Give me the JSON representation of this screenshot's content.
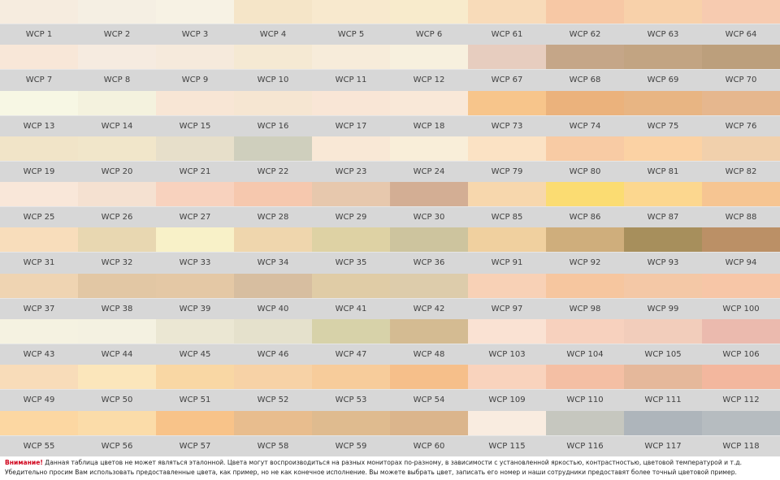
{
  "rows": [
    [
      {
        "code": "WCP 1",
        "color": "#f6ecdf"
      },
      {
        "code": "WCP 2",
        "color": "#f5efe3"
      },
      {
        "code": "WCP 3",
        "color": "#f7f2e4"
      },
      {
        "code": "WCP 4",
        "color": "#f5e5c8"
      },
      {
        "code": "WCP 5",
        "color": "#f8e9ce"
      },
      {
        "code": "WCP 6",
        "color": "#f8ebcc"
      },
      {
        "code": "WCP 61",
        "color": "#f8dbb9"
      },
      {
        "code": "WCP 62",
        "color": "#f7c8a5"
      },
      {
        "code": "WCP 63",
        "color": "#f8d1aa"
      },
      {
        "code": "WCP 64",
        "color": "#f7cbb0"
      }
    ],
    [
      {
        "code": "WCP 7",
        "color": "#f8e7d8"
      },
      {
        "code": "WCP 8",
        "color": "#f6ebe0"
      },
      {
        "code": "WCP 9",
        "color": "#f6eadc"
      },
      {
        "code": "WCP 10",
        "color": "#f5e9d3"
      },
      {
        "code": "WCP 11",
        "color": "#f7ecda"
      },
      {
        "code": "WCP 12",
        "color": "#f7f0de"
      },
      {
        "code": "WCP 67",
        "color": "#e7cdbf"
      },
      {
        "code": "WCP 68",
        "color": "#c5a688"
      },
      {
        "code": "WCP 69",
        "color": "#c2a482"
      },
      {
        "code": "WCP 70",
        "color": "#bc9f7c"
      }
    ],
    [
      {
        "code": "WCP 13",
        "color": "#f7f7e4"
      },
      {
        "code": "WCP 14",
        "color": "#f4f2de"
      },
      {
        "code": "WCP 15",
        "color": "#f8e6d5"
      },
      {
        "code": "WCP 16",
        "color": "#f6e6d2"
      },
      {
        "code": "WCP 17",
        "color": "#f9e6d6"
      },
      {
        "code": "WCP 18",
        "color": "#f9e8d8"
      },
      {
        "code": "WCP 73",
        "color": "#f7c58b"
      },
      {
        "code": "WCP 74",
        "color": "#ebb27c"
      },
      {
        "code": "WCP 75",
        "color": "#e8b583"
      },
      {
        "code": "WCP 76",
        "color": "#e6b78e"
      }
    ],
    [
      {
        "code": "WCP 19",
        "color": "#f1e4c8"
      },
      {
        "code": "WCP 20",
        "color": "#f1e6ca"
      },
      {
        "code": "WCP 21",
        "color": "#e7dfca"
      },
      {
        "code": "WCP 22",
        "color": "#cfcfbd"
      },
      {
        "code": "WCP 23",
        "color": "#f9e8d6"
      },
      {
        "code": "WCP 24",
        "color": "#f9eed9"
      },
      {
        "code": "WCP 79",
        "color": "#fbe2c4"
      },
      {
        "code": "WCP 80",
        "color": "#f8cba4"
      },
      {
        "code": "WCP 81",
        "color": "#fbd2a4"
      },
      {
        "code": "WCP 82",
        "color": "#f1d0ac"
      }
    ],
    [
      {
        "code": "WCP 25",
        "color": "#f9e7d9"
      },
      {
        "code": "WCP 26",
        "color": "#f5e1d1"
      },
      {
        "code": "WCP 27",
        "color": "#f8d2be"
      },
      {
        "code": "WCP 28",
        "color": "#f6c8ae"
      },
      {
        "code": "WCP 29",
        "color": "#e7c8ad"
      },
      {
        "code": "WCP 30",
        "color": "#d3ae94"
      },
      {
        "code": "WCP 85",
        "color": "#f7d7ad"
      },
      {
        "code": "WCP 86",
        "color": "#fbdc72"
      },
      {
        "code": "WCP 87",
        "color": "#fcd78f"
      },
      {
        "code": "WCP 88",
        "color": "#f6c592"
      }
    ],
    [
      {
        "code": "WCP 31",
        "color": "#f8ddbb"
      },
      {
        "code": "WCP 32",
        "color": "#e8d7b1"
      },
      {
        "code": "WCP 33",
        "color": "#f8f1c8"
      },
      {
        "code": "WCP 34",
        "color": "#efd6ad"
      },
      {
        "code": "WCP 35",
        "color": "#ded2a4"
      },
      {
        "code": "WCP 36",
        "color": "#cdc49e"
      },
      {
        "code": "WCP 91",
        "color": "#f0d09f"
      },
      {
        "code": "WCP 92",
        "color": "#cfae7c"
      },
      {
        "code": "WCP 93",
        "color": "#a78f5c"
      },
      {
        "code": "WCP 94",
        "color": "#bb9066"
      }
    ],
    [
      {
        "code": "WCP 37",
        "color": "#efd4b2"
      },
      {
        "code": "WCP 38",
        "color": "#e2c7a4"
      },
      {
        "code": "WCP 39",
        "color": "#e4c8a5"
      },
      {
        "code": "WCP 40",
        "color": "#d7bea0"
      },
      {
        "code": "WCP 41",
        "color": "#e0cca6"
      },
      {
        "code": "WCP 42",
        "color": "#ddccab"
      },
      {
        "code": "WCP 97",
        "color": "#f8d1b6"
      },
      {
        "code": "WCP 98",
        "color": "#f6c69f"
      },
      {
        "code": "WCP 99",
        "color": "#f4c8a6"
      },
      {
        "code": "WCP 100",
        "color": "#f7c6a7"
      }
    ],
    [
      {
        "code": "WCP 43",
        "color": "#f5f2e1"
      },
      {
        "code": "WCP 44",
        "color": "#f4f1e1"
      },
      {
        "code": "WCP 45",
        "color": "#ebe7d3"
      },
      {
        "code": "WCP 46",
        "color": "#e5e1cc"
      },
      {
        "code": "WCP 47",
        "color": "#d7d2a9"
      },
      {
        "code": "WCP 48",
        "color": "#d4bb92"
      },
      {
        "code": "WCP 103",
        "color": "#fae2d3"
      },
      {
        "code": "WCP 104",
        "color": "#f7d1be"
      },
      {
        "code": "WCP 105",
        "color": "#f2cdbb"
      },
      {
        "code": "WCP 106",
        "color": "#ebbaae"
      }
    ],
    [
      {
        "code": "WCP 49",
        "color": "#f8dcb9"
      },
      {
        "code": "WCP 50",
        "color": "#fbe6bb"
      },
      {
        "code": "WCP 51",
        "color": "#f9d7a4"
      },
      {
        "code": "WCP 52",
        "color": "#f7d2a6"
      },
      {
        "code": "WCP 53",
        "color": "#f7cc9b"
      },
      {
        "code": "WCP 54",
        "color": "#f6bf8a"
      },
      {
        "code": "WCP 109",
        "color": "#f9d3bd"
      },
      {
        "code": "WCP 110",
        "color": "#f4bfa4"
      },
      {
        "code": "WCP 111",
        "color": "#e5b89b"
      },
      {
        "code": "WCP 112",
        "color": "#f3b79e"
      }
    ],
    [
      {
        "code": "WCP 55",
        "color": "#fcd7a2"
      },
      {
        "code": "WCP 56",
        "color": "#fbdca9"
      },
      {
        "code": "WCP 57",
        "color": "#f8c389"
      },
      {
        "code": "WCP 58",
        "color": "#e8bd8e"
      },
      {
        "code": "WCP 59",
        "color": "#dfbb8f"
      },
      {
        "code": "WCP 60",
        "color": "#dbb58c"
      },
      {
        "code": "WCP 115",
        "color": "#f9ece0"
      },
      {
        "code": "WCP 116",
        "color": "#c6c7bf"
      },
      {
        "code": "WCP 117",
        "color": "#aeb5bb"
      },
      {
        "code": "WCP 118",
        "color": "#b6bcc0"
      }
    ]
  ],
  "note": {
    "warning": "Внимание!",
    "line1": " Данная таблица цветов не может являться эталонной. Цвета могут воспроизводиться на разных мониторах по-разному, в зависимости с установленной яркостью, контрастностью, цветовой температурой и т.д.",
    "line2": "Убедительно просим Вам использовать предоставленные цвета, как пример, но не как конечное исполнение. Вы можете выбрать цвет, записать его номер и наши сотрудники предоставят более точный цветовой пример."
  }
}
